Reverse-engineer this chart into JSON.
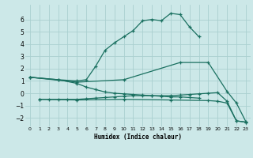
{
  "xlabel": "Humidex (Indice chaleur)",
  "bg_color": "#cce8e8",
  "grid_color": "#aad0d0",
  "line_color": "#1a7060",
  "xlim": [
    -0.5,
    23.5
  ],
  "ylim": [
    -2.7,
    7.2
  ],
  "xticks": [
    0,
    1,
    2,
    3,
    4,
    5,
    6,
    7,
    8,
    9,
    10,
    11,
    12,
    13,
    14,
    15,
    16,
    17,
    18,
    19,
    20,
    21,
    22,
    23
  ],
  "yticks": [
    -2,
    -1,
    0,
    1,
    2,
    3,
    4,
    5,
    6
  ],
  "s1_x": [
    0,
    3,
    5,
    6,
    7,
    8,
    9,
    10,
    11,
    12,
    13,
    14,
    15,
    16,
    17,
    18
  ],
  "s1_y": [
    1.3,
    1.1,
    1.0,
    1.1,
    2.2,
    3.5,
    4.1,
    4.6,
    5.1,
    5.9,
    6.0,
    5.9,
    6.5,
    6.4,
    5.4,
    4.6
  ],
  "s2_x": [
    0,
    5,
    10,
    16,
    19,
    21,
    22,
    23
  ],
  "s2_y": [
    1.3,
    0.9,
    1.1,
    2.5,
    2.5,
    0.15,
    -0.8,
    -2.3
  ],
  "s3_x": [
    0,
    3,
    5,
    6,
    7,
    8,
    9,
    10,
    11,
    12,
    13,
    14,
    15,
    16,
    17,
    18
  ],
  "s3_y": [
    1.3,
    1.1,
    0.8,
    0.5,
    0.3,
    0.1,
    0.0,
    -0.05,
    -0.1,
    -0.15,
    -0.2,
    -0.25,
    -0.3,
    -0.3,
    -0.35,
    -0.4
  ],
  "s4_x": [
    1,
    2,
    3,
    4,
    5,
    6,
    7,
    8,
    9,
    10,
    11,
    12,
    13,
    14,
    15,
    16,
    17,
    18,
    19,
    20,
    21,
    22,
    23
  ],
  "s4_y": [
    -0.5,
    -0.5,
    -0.5,
    -0.5,
    -0.5,
    -0.45,
    -0.4,
    -0.35,
    -0.3,
    -0.25,
    -0.2,
    -0.2,
    -0.2,
    -0.2,
    -0.2,
    -0.15,
    -0.1,
    -0.05,
    0.0,
    0.05,
    -0.65,
    -2.25,
    -2.35
  ],
  "s5_x": [
    1,
    5,
    10,
    15,
    19,
    20,
    21,
    22,
    23
  ],
  "s5_y": [
    -0.5,
    -0.55,
    -0.5,
    -0.55,
    -0.6,
    -0.65,
    -0.8,
    -2.25,
    -2.35
  ]
}
